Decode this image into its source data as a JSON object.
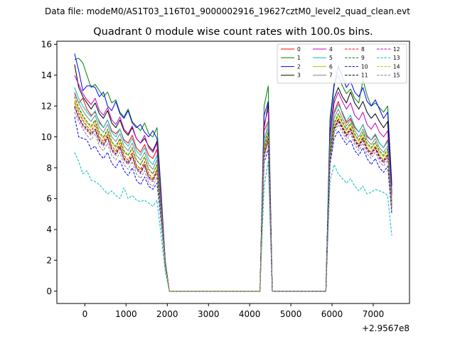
{
  "figure": {
    "suptitle": "Data file: modeM0/AS1T03_116T01_9000002916_19627cztM0_level2_quad_clean.evt"
  },
  "chart_data": {
    "type": "line",
    "title": "Quadrant 0 module wise count rates with 100.0s bins.",
    "xlabel": "",
    "ylabel": "",
    "x_offset_label": "+2.9567e8",
    "xlim": [
      -680,
      7880
    ],
    "ylim": [
      -0.8,
      16.2
    ],
    "xticks": [
      0,
      1000,
      2000,
      3000,
      4000,
      5000,
      6000,
      7000
    ],
    "xtick_labels": [
      "0",
      "1000",
      "2000",
      "3000",
      "4000",
      "5000",
      "6000",
      "7000"
    ],
    "yticks": [
      0,
      2,
      4,
      6,
      8,
      10,
      12,
      14,
      16
    ],
    "ytick_labels": [
      "0",
      "2",
      "4",
      "6",
      "8",
      "10",
      "12",
      "14",
      "16"
    ],
    "grid": false,
    "legend_position": "top-right",
    "segments": [
      {
        "start": -250,
        "step": 100,
        "count": 24
      },
      {
        "start": 4250,
        "step": 100,
        "count": 4
      },
      {
        "start": 5850,
        "step": 100,
        "count": 17
      }
    ],
    "series": [
      {
        "name": "0",
        "color": "#ff0000",
        "dash": "solid",
        "values": [
          12.8,
          12.2,
          12.5,
          11.8,
          11.4,
          11.6,
          11.0,
          10.6,
          11.1,
          10.4,
          10.2,
          10.5,
          9.8,
          9.6,
          10.1,
          9.3,
          9.0,
          9.5,
          8.8,
          8.6,
          9.2,
          5.5,
          1.8,
          0.0,
          0.0,
          10.4,
          11.0,
          0.0,
          0.0,
          9.5,
          11.6,
          12.3,
          11.5,
          10.9,
          11.2,
          10.6,
          10.3,
          10.8,
          10.0,
          9.8,
          10.1,
          9.6,
          9.3,
          9.8,
          6.2
        ]
      },
      {
        "name": "1",
        "color": "#008000",
        "dash": "solid",
        "values": [
          15.0,
          15.1,
          14.8,
          14.0,
          13.2,
          13.4,
          13.0,
          12.6,
          12.9,
          12.2,
          12.4,
          11.6,
          11.3,
          11.8,
          11.0,
          10.7,
          10.4,
          10.9,
          10.2,
          10.0,
          10.6,
          6.5,
          2.0,
          0.0,
          0.0,
          12.0,
          13.3,
          0.0,
          0.0,
          11.2,
          13.5,
          14.0,
          13.3,
          12.8,
          13.1,
          12.5,
          12.2,
          13.7,
          12.7,
          12.0,
          12.2,
          11.9,
          11.6,
          12.0,
          7.0
        ]
      },
      {
        "name": "2",
        "color": "#0000ff",
        "dash": "solid",
        "values": [
          15.4,
          14.3,
          13.0,
          13.3,
          13.3,
          13.2,
          12.6,
          12.9,
          12.0,
          11.7,
          12.3,
          11.5,
          11.2,
          11.7,
          10.9,
          10.6,
          10.8,
          10.3,
          10.0,
          10.4,
          9.9,
          6.2,
          1.9,
          0.0,
          0.0,
          11.4,
          12.3,
          0.0,
          0.0,
          10.8,
          13.3,
          14.6,
          13.9,
          13.2,
          13.6,
          12.9,
          12.6,
          13.2,
          12.3,
          12.0,
          12.4,
          11.8,
          11.2,
          11.6,
          6.8
        ]
      },
      {
        "name": "3",
        "color": "#000000",
        "dash": "solid",
        "values": [
          14.7,
          13.2,
          12.6,
          12.2,
          11.8,
          12.2,
          11.5,
          11.2,
          11.7,
          10.9,
          10.6,
          11.1,
          10.4,
          10.1,
          10.6,
          9.9,
          9.6,
          9.9,
          9.4,
          9.1,
          9.7,
          6.0,
          1.9,
          0.0,
          0.0,
          10.6,
          12.1,
          0.0,
          0.0,
          10.2,
          12.5,
          13.2,
          12.6,
          12.2,
          12.9,
          12.2,
          11.8,
          12.3,
          11.6,
          11.2,
          11.5,
          11.0,
          10.6,
          11.0,
          6.4
        ]
      },
      {
        "name": "4",
        "color": "#bf00bf",
        "dash": "solid",
        "values": [
          14.0,
          13.4,
          12.8,
          12.4,
          12.1,
          12.5,
          11.7,
          11.4,
          11.9,
          11.1,
          10.8,
          11.3,
          10.5,
          10.2,
          10.7,
          9.9,
          9.6,
          10.1,
          9.3,
          9.0,
          9.6,
          6.0,
          1.9,
          0.0,
          0.0,
          10.8,
          11.8,
          0.0,
          0.0,
          10.0,
          12.2,
          12.9,
          12.3,
          11.8,
          12.2,
          11.4,
          11.1,
          11.6,
          10.8,
          10.5,
          10.9,
          10.3,
          10.0,
          10.4,
          6.3
        ]
      },
      {
        "name": "5",
        "color": "#00bfbf",
        "dash": "solid",
        "values": [
          13.2,
          12.5,
          12.0,
          11.6,
          11.3,
          11.7,
          10.9,
          10.6,
          11.1,
          10.3,
          10.0,
          10.5,
          9.7,
          9.4,
          9.9,
          9.1,
          8.8,
          9.3,
          8.5,
          8.2,
          8.8,
          5.5,
          1.8,
          0.0,
          0.0,
          9.8,
          10.9,
          0.0,
          0.0,
          9.5,
          11.5,
          12.1,
          11.6,
          11.0,
          11.4,
          10.7,
          10.3,
          10.8,
          10.1,
          9.8,
          10.2,
          9.6,
          9.3,
          9.7,
          5.9
        ]
      },
      {
        "name": "6",
        "color": "#bfbf00",
        "dash": "solid",
        "values": [
          12.4,
          11.8,
          11.3,
          10.9,
          10.6,
          11.0,
          10.2,
          9.9,
          10.4,
          9.6,
          9.3,
          9.8,
          9.0,
          8.8,
          9.2,
          8.5,
          8.2,
          8.7,
          7.9,
          7.6,
          8.2,
          5.1,
          1.7,
          0.0,
          0.0,
          9.2,
          10.2,
          0.0,
          0.0,
          8.9,
          10.8,
          11.4,
          10.9,
          10.4,
          10.8,
          10.1,
          9.7,
          10.2,
          9.5,
          9.2,
          9.6,
          9.0,
          8.7,
          9.1,
          5.6
        ]
      },
      {
        "name": "7",
        "color": "#808080",
        "dash": "solid",
        "values": [
          12.9,
          12.2,
          11.7,
          11.3,
          11.0,
          11.4,
          10.6,
          10.3,
          10.8,
          10.0,
          9.7,
          10.2,
          9.4,
          9.1,
          9.6,
          8.8,
          8.5,
          9.0,
          8.2,
          7.9,
          8.5,
          5.3,
          1.8,
          0.0,
          0.0,
          9.5,
          10.6,
          0.0,
          0.0,
          9.2,
          11.2,
          11.8,
          11.2,
          10.7,
          11.1,
          10.4,
          10.0,
          10.5,
          9.8,
          9.5,
          9.9,
          9.3,
          9.0,
          9.4,
          5.8
        ]
      },
      {
        "name": "8",
        "color": "#ff0000",
        "dash": "dashed",
        "values": [
          12.2,
          11.6,
          11.1,
          10.7,
          10.4,
          10.8,
          10.0,
          9.7,
          10.2,
          9.4,
          9.1,
          9.6,
          8.8,
          8.5,
          9.0,
          8.2,
          7.9,
          8.4,
          7.6,
          7.3,
          7.9,
          5.0,
          1.7,
          0.0,
          0.0,
          9.0,
          10.0,
          0.0,
          0.0,
          8.7,
          10.6,
          11.2,
          10.7,
          10.2,
          10.6,
          9.9,
          9.5,
          10.0,
          9.3,
          9.0,
          9.4,
          8.8,
          8.5,
          8.9,
          5.5
        ]
      },
      {
        "name": "9",
        "color": "#008000",
        "dash": "dashed",
        "values": [
          12.6,
          11.9,
          11.4,
          11.0,
          10.7,
          11.1,
          10.3,
          10.0,
          10.5,
          9.7,
          9.4,
          9.9,
          9.1,
          8.8,
          9.3,
          8.5,
          8.2,
          8.7,
          7.9,
          7.6,
          8.2,
          5.1,
          1.7,
          0.0,
          0.0,
          9.3,
          10.3,
          0.0,
          0.0,
          9.0,
          10.9,
          11.5,
          11.0,
          10.5,
          10.9,
          10.2,
          9.8,
          10.3,
          9.6,
          9.3,
          9.7,
          9.1,
          8.8,
          9.2,
          5.6
        ]
      },
      {
        "name": "10",
        "color": "#0000ff",
        "dash": "dashed",
        "values": [
          11.3,
          10.0,
          9.9,
          9.8,
          9.2,
          9.4,
          8.9,
          8.6,
          9.0,
          8.3,
          8.0,
          8.5,
          7.8,
          7.5,
          8.0,
          7.2,
          6.9,
          7.4,
          6.8,
          6.6,
          7.0,
          4.5,
          1.6,
          0.0,
          0.0,
          8.3,
          9.2,
          0.0,
          0.0,
          8.2,
          9.9,
          10.4,
          9.9,
          9.5,
          9.8,
          9.1,
          8.8,
          9.3,
          8.6,
          8.2,
          8.6,
          8.0,
          7.7,
          8.1,
          5.0
        ]
      },
      {
        "name": "11",
        "color": "#000000",
        "dash": "dashed",
        "values": [
          12.0,
          11.3,
          10.8,
          10.5,
          10.2,
          10.5,
          9.8,
          9.5,
          10.0,
          9.2,
          8.9,
          9.4,
          8.6,
          8.3,
          8.8,
          8.0,
          7.7,
          8.2,
          7.4,
          7.2,
          7.8,
          4.9,
          1.7,
          0.0,
          0.0,
          8.9,
          9.9,
          0.0,
          0.0,
          8.6,
          10.5,
          11.1,
          10.6,
          10.1,
          10.5,
          9.8,
          9.4,
          9.9,
          9.2,
          8.9,
          9.3,
          8.7,
          8.4,
          8.8,
          5.4
        ]
      },
      {
        "name": "12",
        "color": "#bf00bf",
        "dash": "dashed",
        "values": [
          11.9,
          11.2,
          10.7,
          10.4,
          10.1,
          10.4,
          9.7,
          9.4,
          9.9,
          9.1,
          8.8,
          9.3,
          8.5,
          8.2,
          8.7,
          7.9,
          7.6,
          8.1,
          7.3,
          7.1,
          7.7,
          4.8,
          1.7,
          0.0,
          0.0,
          8.8,
          9.8,
          0.0,
          0.0,
          8.5,
          10.4,
          11.0,
          10.5,
          10.0,
          10.4,
          9.7,
          9.3,
          9.8,
          9.1,
          8.8,
          9.2,
          8.6,
          8.3,
          8.7,
          5.3
        ]
      },
      {
        "name": "13",
        "color": "#00bfbf",
        "dash": "dashed",
        "values": [
          9.0,
          8.4,
          7.6,
          7.8,
          7.2,
          7.1,
          6.9,
          6.6,
          6.3,
          6.5,
          6.2,
          6.0,
          6.7,
          6.0,
          6.2,
          5.9,
          5.8,
          5.9,
          5.7,
          5.5,
          5.9,
          3.6,
          1.3,
          0.0,
          0.0,
          6.8,
          8.4,
          0.0,
          0.0,
          7.1,
          8.2,
          7.6,
          7.3,
          7.0,
          7.3,
          6.8,
          6.5,
          6.8,
          6.3,
          6.4,
          6.6,
          6.5,
          6.4,
          6.2,
          3.6
        ]
      },
      {
        "name": "14",
        "color": "#bfbf00",
        "dash": "dashed",
        "values": [
          12.3,
          11.5,
          11.0,
          10.6,
          10.3,
          10.7,
          9.9,
          9.6,
          10.1,
          9.3,
          9.0,
          9.5,
          8.7,
          8.4,
          8.9,
          8.1,
          7.8,
          8.3,
          7.5,
          7.2,
          7.8,
          4.9,
          1.7,
          0.0,
          0.0,
          9.0,
          10.0,
          0.0,
          0.0,
          8.7,
          10.6,
          11.2,
          10.7,
          10.2,
          10.6,
          9.9,
          9.5,
          10.0,
          9.3,
          9.0,
          9.4,
          8.8,
          8.5,
          8.9,
          5.5
        ]
      },
      {
        "name": "15",
        "color": "#808080",
        "dash": "dashed",
        "values": [
          11.6,
          11.0,
          10.5,
          10.1,
          9.8,
          10.2,
          9.4,
          9.1,
          9.6,
          8.8,
          8.5,
          9.0,
          8.2,
          7.9,
          8.4,
          7.6,
          7.3,
          7.8,
          7.0,
          6.8,
          7.4,
          4.7,
          1.6,
          0.0,
          0.0,
          8.6,
          9.6,
          0.0,
          0.0,
          8.4,
          10.2,
          10.8,
          10.3,
          9.8,
          10.2,
          9.5,
          9.1,
          9.6,
          8.9,
          8.6,
          9.0,
          8.4,
          8.1,
          8.5,
          5.2
        ]
      }
    ]
  }
}
